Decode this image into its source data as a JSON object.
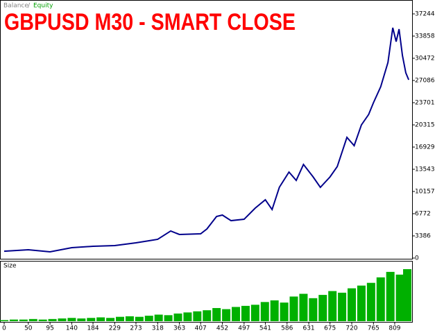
{
  "chart_data": [
    {
      "type": "line",
      "title": "GBPUSD M30 - SMART CLOSE",
      "legend_separator": "/",
      "equity_label": "Equity",
      "equity_color": "#00a000",
      "series": [
        {
          "name": "Balance",
          "color": "#00008b",
          "x": [
            0,
            50,
            95,
            140,
            184,
            229,
            273,
            300,
            318,
            345,
            363,
            407,
            420,
            440,
            452,
            470,
            497,
            520,
            541,
            555,
            570,
            590,
            605,
            620,
            640,
            655,
            675,
            690,
            710,
            725,
            740,
            755,
            765,
            780,
            795,
            805,
            812,
            818,
            825,
            832,
            838
          ],
          "values": [
            1050,
            1270,
            950,
            1590,
            1800,
            1900,
            2330,
            2650,
            2860,
            4130,
            3600,
            3700,
            4440,
            6350,
            6560,
            5710,
            5920,
            7620,
            8890,
            7400,
            10790,
            13120,
            11850,
            14280,
            12380,
            10790,
            12380,
            13960,
            18410,
            17140,
            20310,
            21900,
            23700,
            26130,
            29840,
            35130,
            33010,
            34920,
            30900,
            28250,
            27190
          ]
        }
      ],
      "xlim": [
        0,
        845
      ],
      "ylim": [
        0,
        37244
      ],
      "yticks": [
        0,
        3386,
        6772,
        10157,
        13543,
        16929,
        20315,
        23701,
        27086,
        30472,
        33858,
        37244
      ]
    },
    {
      "type": "bar",
      "title": "Size",
      "color": "#00b000",
      "x": [
        0,
        20,
        40,
        60,
        80,
        100,
        120,
        140,
        160,
        180,
        200,
        220,
        240,
        260,
        280,
        300,
        320,
        340,
        360,
        380,
        400,
        420,
        440,
        460,
        480,
        500,
        520,
        540,
        560,
        580,
        600,
        620,
        640,
        660,
        680,
        700,
        720,
        740,
        760,
        780,
        800,
        820,
        835
      ],
      "values": [
        2,
        3,
        3,
        4,
        3,
        4,
        5,
        6,
        5,
        6,
        7,
        6,
        8,
        9,
        8,
        10,
        12,
        11,
        14,
        16,
        18,
        20,
        24,
        22,
        26,
        28,
        30,
        35,
        38,
        34,
        45,
        50,
        42,
        48,
        55,
        52,
        60,
        65,
        70,
        80,
        90,
        85,
        95
      ],
      "xlim": [
        0,
        845
      ],
      "ylim": [
        0,
        100
      ],
      "xticks": [
        0,
        50,
        95,
        140,
        184,
        229,
        273,
        318,
        363,
        407,
        452,
        497,
        541,
        586,
        631,
        675,
        720,
        765,
        809
      ]
    }
  ]
}
